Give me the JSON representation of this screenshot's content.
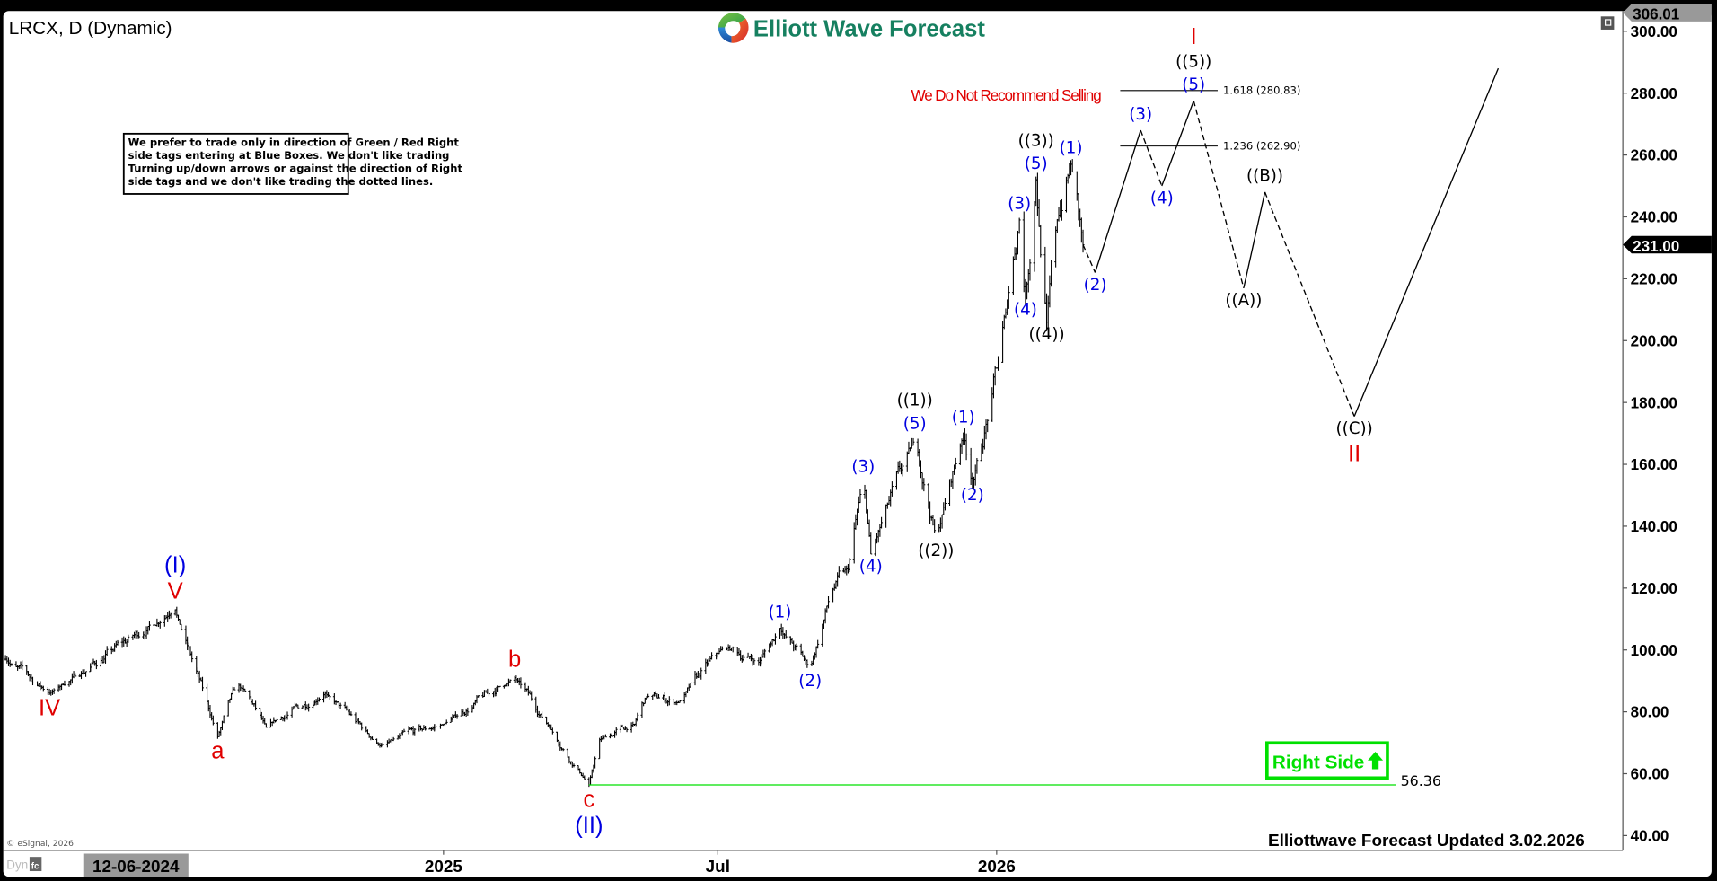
{
  "header": {
    "title": "LRCX, D (Dynamic)",
    "logo_text": "Elliott Wave Forecast",
    "restore_icon": "window-restore-icon"
  },
  "note_box": {
    "lines": [
      "We prefer to trade only in direction of Green / Red Right",
      "side tags entering at Blue Boxes. We don't like trading",
      "Turning up/down arrows or against the direction of Right",
      "side tags and we don't like trading the dotted lines."
    ]
  },
  "sell_warning": "We Do Not Recommend Selling",
  "right_side_tag": {
    "label": "Right Side",
    "icon": "arrow-up-icon",
    "color": "#00e000"
  },
  "footer": {
    "updated": "Elliottwave Forecast Updated 3.02.2026",
    "copyright": "© eSignal, 2026",
    "dyn_label": "Dyn",
    "lock_icon": "fc-lock-icon"
  },
  "colors": {
    "red": "#e00000",
    "blue": "#0000e0",
    "black": "#000000",
    "green": "#00e000",
    "logo_green": "#168060"
  },
  "chart_data": {
    "type": "ohlc",
    "symbol": "LRCX",
    "interval": "D",
    "y_axis": {
      "range": [
        35,
        306.5
      ],
      "ticks": [
        "300.00",
        "280.00",
        "260.00",
        "240.00",
        "220.00",
        "200.00",
        "180.00",
        "160.00",
        "140.00",
        "120.00",
        "100.00",
        "80.00",
        "60.00",
        "40.00"
      ]
    },
    "x_axis": {
      "ticks": [
        {
          "label": "2025",
          "date": "2025-01-01"
        },
        {
          "label": "Jul",
          "date": "2025-07-01"
        },
        {
          "label": "2026",
          "date": "2026-01-01"
        }
      ],
      "cursor_date": {
        "label": "12-06-2024",
        "date": "2024-06-12"
      }
    },
    "price_tags": {
      "top": "306.01",
      "last": "231.00"
    },
    "last_price": 231.0,
    "price_path": [
      {
        "date": "2024-03-18",
        "price": 97
      },
      {
        "date": "2024-04-16",
        "price": 86,
        "labels": [
          {
            "text": "IV",
            "color": "red",
            "pos": "below",
            "roman": true
          }
        ]
      },
      {
        "date": "2024-07-08",
        "price": 113,
        "labels": [
          {
            "text": "V",
            "color": "red",
            "pos": "above",
            "roman": true
          },
          {
            "text": "(I)",
            "color": "blue",
            "pos": "above",
            "roman": true
          }
        ]
      },
      {
        "date": "2024-08-05",
        "price": 72,
        "labels": [
          {
            "text": "a",
            "color": "red",
            "pos": "below",
            "roman": true
          }
        ]
      },
      {
        "date": "2024-08-18",
        "price": 89
      },
      {
        "date": "2024-09-06",
        "price": 75
      },
      {
        "date": "2024-10-15",
        "price": 86
      },
      {
        "date": "2024-11-20",
        "price": 69
      },
      {
        "date": "2025-01-01",
        "price": 76
      },
      {
        "date": "2025-02-17",
        "price": 91,
        "labels": [
          {
            "text": "b",
            "color": "red",
            "pos": "above",
            "roman": true
          }
        ]
      },
      {
        "date": "2025-03-12",
        "price": 75
      },
      {
        "date": "2025-04-07",
        "price": 56.36,
        "labels": [
          {
            "text": "c",
            "color": "red",
            "pos": "below",
            "roman": true
          },
          {
            "text": "(II)",
            "color": "blue",
            "pos": "below",
            "roman": true
          }
        ]
      },
      {
        "date": "2025-04-14",
        "price": 71
      },
      {
        "date": "2025-05-07",
        "price": 76
      },
      {
        "date": "2025-05-15",
        "price": 85
      },
      {
        "date": "2025-06-05",
        "price": 83
      },
      {
        "date": "2025-07-05",
        "price": 101
      },
      {
        "date": "2025-07-28",
        "price": 96
      },
      {
        "date": "2025-08-11",
        "price": 107,
        "labels": [
          {
            "text": "(1)",
            "color": "blue",
            "pos": "above"
          }
        ]
      },
      {
        "date": "2025-08-31",
        "price": 94,
        "labels": [
          {
            "text": "(2)",
            "color": "blue",
            "pos": "below"
          }
        ]
      },
      {
        "date": "2025-09-14",
        "price": 119
      },
      {
        "date": "2025-09-25",
        "price": 126
      },
      {
        "date": "2025-10-05",
        "price": 154,
        "labels": [
          {
            "text": "(3)",
            "color": "blue",
            "pos": "above"
          }
        ]
      },
      {
        "date": "2025-10-10",
        "price": 131,
        "labels": [
          {
            "text": "(4)",
            "color": "blue",
            "pos": "below"
          }
        ]
      },
      {
        "date": "2025-11-08",
        "price": 168,
        "labels": [
          {
            "text": "(5)",
            "color": "blue",
            "pos": "above"
          },
          {
            "text": "((1))",
            "color": "black",
            "pos": "above"
          }
        ]
      },
      {
        "date": "2025-11-22",
        "price": 136,
        "labels": [
          {
            "text": "((2))",
            "color": "black",
            "pos": "below"
          }
        ]
      },
      {
        "date": "2025-12-10",
        "price": 170,
        "labels": [
          {
            "text": "(1)",
            "color": "blue",
            "pos": "above"
          }
        ]
      },
      {
        "date": "2025-12-16",
        "price": 154,
        "labels": [
          {
            "text": "(2)",
            "color": "blue",
            "pos": "below"
          }
        ]
      },
      {
        "date": "2025-12-28",
        "price": 179
      },
      {
        "date": "2026-01-02",
        "price": 193
      },
      {
        "date": "2026-01-07",
        "price": 209
      },
      {
        "date": "2026-01-16",
        "price": 239,
        "labels": [
          {
            "text": "(3)",
            "color": "blue",
            "pos": "above"
          }
        ]
      },
      {
        "date": "2026-01-20",
        "price": 214,
        "labels": [
          {
            "text": "(4)",
            "color": "blue",
            "pos": "below"
          }
        ]
      },
      {
        "date": "2026-01-27",
        "price": 252,
        "labels": [
          {
            "text": "(5)",
            "color": "blue",
            "pos": "above"
          },
          {
            "text": "((3))",
            "color": "black",
            "pos": "above"
          }
        ]
      },
      {
        "date": "2026-02-03",
        "price": 206,
        "labels": [
          {
            "text": "((4))",
            "color": "black",
            "pos": "below"
          }
        ]
      },
      {
        "date": "2026-02-10",
        "price": 239
      },
      {
        "date": "2026-02-19",
        "price": 257,
        "labels": [
          {
            "text": "(1)",
            "color": "blue",
            "pos": "above"
          }
        ]
      },
      {
        "date": "2026-02-27",
        "price": 231
      }
    ],
    "projection": [
      {
        "date": "2026-02-27",
        "price": 231
      },
      {
        "date": "2026-03-07",
        "price": 222,
        "dashed": true,
        "labels": [
          {
            "text": "(2)",
            "color": "blue",
            "pos": "below"
          }
        ]
      },
      {
        "date": "2026-04-06",
        "price": 268,
        "labels": [
          {
            "text": "(3)",
            "color": "blue",
            "pos": "above"
          }
        ]
      },
      {
        "date": "2026-04-20",
        "price": 250,
        "dashed": true,
        "labels": [
          {
            "text": "(4)",
            "color": "blue",
            "pos": "below"
          }
        ]
      },
      {
        "date": "2026-05-11",
        "price": 277.5,
        "labels": [
          {
            "text": "(5)",
            "color": "blue",
            "pos": "above"
          },
          {
            "text": "((5))",
            "color": "black",
            "pos": "above"
          },
          {
            "text": "I",
            "color": "red",
            "pos": "above",
            "roman": true
          }
        ]
      },
      {
        "date": "2026-06-13",
        "price": 217,
        "dashed": true,
        "labels": [
          {
            "text": "((A))",
            "color": "black",
            "pos": "below"
          }
        ]
      },
      {
        "date": "2026-06-27",
        "price": 248,
        "labels": [
          {
            "text": "((B))",
            "color": "black",
            "pos": "above"
          }
        ]
      },
      {
        "date": "2026-08-25",
        "price": 175.5,
        "dashed": true,
        "labels": [
          {
            "text": "((C))",
            "color": "black",
            "pos": "below"
          },
          {
            "text": "II",
            "color": "red",
            "pos": "below",
            "roman": true
          }
        ]
      },
      {
        "date": "2026-11-28",
        "price": 288
      }
    ],
    "fib_levels": [
      {
        "ratio": "1.618",
        "value": 280.83,
        "label": "1.618 (280.83)"
      },
      {
        "ratio": "1.236",
        "value": 262.9,
        "label": "1.236 (262.90)"
      }
    ],
    "invalidation": {
      "value": 56.36,
      "label": "56.36",
      "from_date": "2025-04-07",
      "color": "#00e000"
    }
  }
}
